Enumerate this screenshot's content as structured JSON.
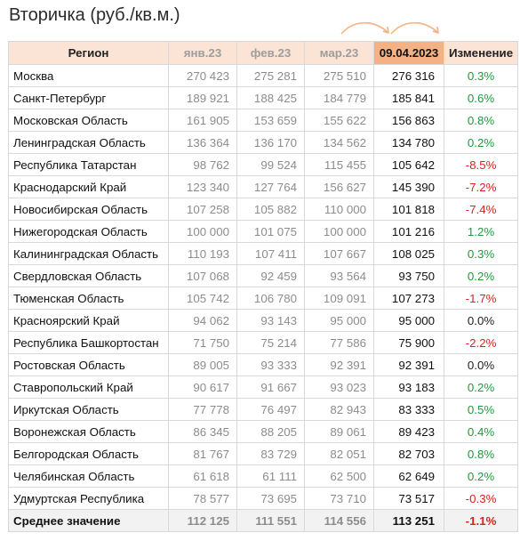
{
  "title": "Вторичка (руб./кв.м.)",
  "colors": {
    "header_bg": "#fbe4d5",
    "current_header_bg": "#f4b183",
    "positive": "#1f9a3a",
    "negative": "#e02020",
    "arrow": "#f4b183"
  },
  "icons": [
    "curved-arrow-icon",
    "curved-arrow-icon"
  ],
  "columns": [
    "Регион",
    "янв.23",
    "фев.23",
    "мар.23",
    "09.04.2023",
    "Изменение"
  ],
  "rows": [
    {
      "region": "Москва",
      "jan": "270 423",
      "feb": "275 281",
      "mar": "275 510",
      "cur": "276 316",
      "chg": "0.3%",
      "sign": "pos"
    },
    {
      "region": "Санкт-Петербург",
      "jan": "189 921",
      "feb": "188 425",
      "mar": "184 779",
      "cur": "185 841",
      "chg": "0.6%",
      "sign": "pos"
    },
    {
      "region": "Московская Область",
      "jan": "161 905",
      "feb": "153 659",
      "mar": "155 622",
      "cur": "156 863",
      "chg": "0.8%",
      "sign": "pos"
    },
    {
      "region": "Ленинградская Область",
      "jan": "136 364",
      "feb": "136 170",
      "mar": "134 562",
      "cur": "134 780",
      "chg": "0.2%",
      "sign": "pos"
    },
    {
      "region": "Республика Татарстан",
      "jan": "98 762",
      "feb": "99 524",
      "mar": "115 455",
      "cur": "105 642",
      "chg": "-8.5%",
      "sign": "neg"
    },
    {
      "region": "Краснодарский Край",
      "jan": "123 340",
      "feb": "127 764",
      "mar": "156 627",
      "cur": "145 390",
      "chg": "-7.2%",
      "sign": "neg"
    },
    {
      "region": "Новосибирская Область",
      "jan": "107 258",
      "feb": "105 882",
      "mar": "110 000",
      "cur": "101 818",
      "chg": "-7.4%",
      "sign": "neg"
    },
    {
      "region": "Нижегородская Область",
      "jan": "100 000",
      "feb": "101 075",
      "mar": "100 000",
      "cur": "101 216",
      "chg": "1.2%",
      "sign": "pos"
    },
    {
      "region": "Калининградская Область",
      "jan": "110 193",
      "feb": "107 411",
      "mar": "107 667",
      "cur": "108 025",
      "chg": "0.3%",
      "sign": "pos"
    },
    {
      "region": "Свердловская Область",
      "jan": "107 068",
      "feb": "92 459",
      "mar": "93 564",
      "cur": "93 750",
      "chg": "0.2%",
      "sign": "pos"
    },
    {
      "region": "Тюменская Область",
      "jan": "105 742",
      "feb": "106 780",
      "mar": "109 091",
      "cur": "107 273",
      "chg": "-1.7%",
      "sign": "neg"
    },
    {
      "region": "Красноярский Край",
      "jan": "94 062",
      "feb": "93 143",
      "mar": "95 000",
      "cur": "95 000",
      "chg": "0.0%",
      "sign": "zero"
    },
    {
      "region": "Республика Башкортостан",
      "jan": "71 750",
      "feb": "75 214",
      "mar": "77 586",
      "cur": "75 900",
      "chg": "-2.2%",
      "sign": "neg"
    },
    {
      "region": "Ростовская Область",
      "jan": "89 005",
      "feb": "93 333",
      "mar": "92 391",
      "cur": "92 391",
      "chg": "0.0%",
      "sign": "zero"
    },
    {
      "region": "Ставропольский Край",
      "jan": "90 617",
      "feb": "91 667",
      "mar": "93 023",
      "cur": "93 183",
      "chg": "0.2%",
      "sign": "pos"
    },
    {
      "region": "Иркутская Область",
      "jan": "77 778",
      "feb": "76 497",
      "mar": "82 943",
      "cur": "83 333",
      "chg": "0.5%",
      "sign": "pos"
    },
    {
      "region": "Воронежская Область",
      "jan": "86 345",
      "feb": "88 205",
      "mar": "89 061",
      "cur": "89 423",
      "chg": "0.4%",
      "sign": "pos"
    },
    {
      "region": "Белгородская Область",
      "jan": "81 767",
      "feb": "83 729",
      "mar": "82 051",
      "cur": "82 703",
      "chg": "0.8%",
      "sign": "pos"
    },
    {
      "region": "Челябинская Область",
      "jan": "61 618",
      "feb": "61 111",
      "mar": "62 500",
      "cur": "62 649",
      "chg": "0.2%",
      "sign": "pos"
    },
    {
      "region": "Удмуртская Республика",
      "jan": "78 577",
      "feb": "73 695",
      "mar": "73 710",
      "cur": "73 517",
      "chg": "-0.3%",
      "sign": "neg"
    }
  ],
  "average": {
    "region": "Среднее значение",
    "jan": "112 125",
    "feb": "111 551",
    "mar": "114 556",
    "cur": "113 251",
    "chg": "-1.1%",
    "sign": "neg"
  }
}
